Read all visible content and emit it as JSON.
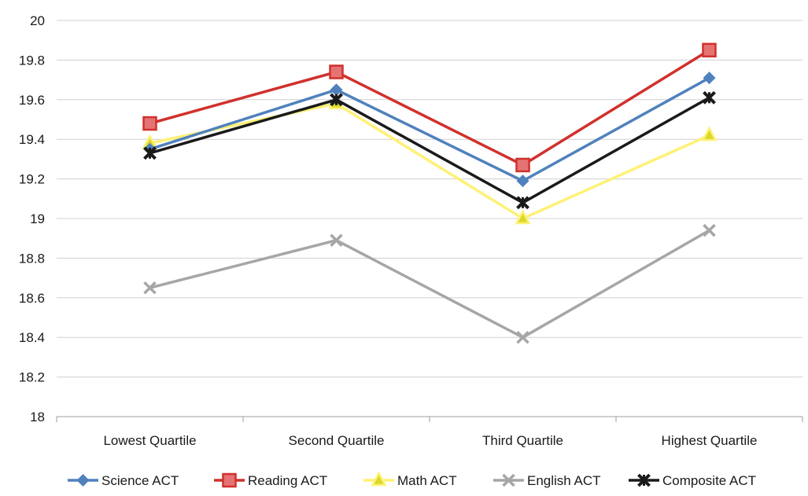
{
  "chart_data": {
    "type": "line",
    "title": "",
    "xlabel": "",
    "ylabel": "",
    "categories": [
      "Lowest Quartile",
      "Second Quartile",
      "Third Quartile",
      "Highest Quartile"
    ],
    "ylim": [
      18,
      20
    ],
    "yticks": [
      "18",
      "18.2",
      "18.4",
      "18.6",
      "18.8",
      "19",
      "19.2",
      "19.4",
      "19.6",
      "19.8",
      "20"
    ],
    "grid": true,
    "legend_position": "bottom",
    "series": [
      {
        "name": "Science ACT",
        "values": [
          19.35,
          19.65,
          19.19,
          19.71
        ],
        "color": "#4f81bd",
        "marker": "diamond"
      },
      {
        "name": "Reading ACT",
        "values": [
          19.48,
          19.74,
          19.27,
          19.85
        ],
        "color": "#d0312d",
        "marker": "square"
      },
      {
        "name": "Math ACT",
        "values": [
          19.38,
          19.58,
          19.0,
          19.42
        ],
        "color": "#fff176",
        "marker": "triangle"
      },
      {
        "name": "English ACT",
        "values": [
          18.65,
          18.89,
          18.4,
          18.94
        ],
        "color": "#a6a6a6",
        "marker": "x"
      },
      {
        "name": "Composite ACT",
        "values": [
          19.33,
          19.6,
          19.08,
          19.61
        ],
        "color": "#1a1a1a",
        "marker": "star"
      }
    ]
  }
}
